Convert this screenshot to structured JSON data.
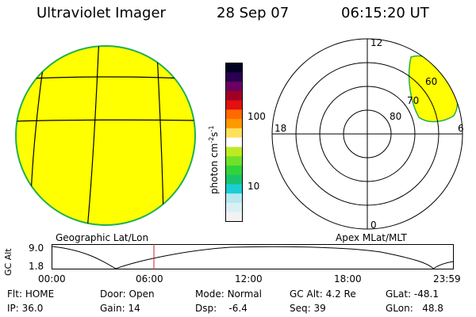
{
  "header": {
    "instrument": "Ultraviolet Imager",
    "date": "28 Sep 07",
    "time": "06:15:20 UT"
  },
  "colorbar": {
    "unit_label": "photon cm",
    "unit_exp1": "-2",
    "unit_mid": "s",
    "unit_exp2": "-1",
    "tick_100": "100",
    "tick_10": "10",
    "colors": [
      "#f2f2f2",
      "#d8f0f4",
      "#b6e8ee",
      "#1ccdd6",
      "#19c36d",
      "#2fd43a",
      "#6fe12b",
      "#bdea23",
      "#ffffff",
      "#ffe05a",
      "#ff9900",
      "#ff6a00",
      "#e21010",
      "#a10024",
      "#6b0063",
      "#2a0052",
      "#000020"
    ]
  },
  "geo_panel": {
    "label": "Geographic Lat/Lon",
    "fill_color": "#ffff00",
    "rim_color": "#20b050"
  },
  "polar_panel": {
    "label": "Apex MLat/MLT",
    "mlt_12": "12",
    "mlt_18": "18",
    "mlt_6": "6",
    "mlt_0": "0",
    "lat_60": "60",
    "lat_70": "70",
    "lat_80": "80"
  },
  "altitude_plot": {
    "ylabel": "GC Alt",
    "yticks": [
      "9.0",
      "1.8"
    ],
    "xticks": [
      "00:00",
      "06:00",
      "12:00",
      "18:00",
      "23:59"
    ],
    "current_time_marker_color": "#d02020"
  },
  "status": {
    "flt_label": "Flt:",
    "flt_value": "HOME",
    "ip_label": "IP:",
    "ip_value": "36.0",
    "door_label": "Door:",
    "door_value": "Open",
    "gain_label": "Gain:",
    "gain_value": "14",
    "mode_label": "Mode:",
    "mode_value": "Normal",
    "dsp_label": "Dsp:",
    "dsp_value": "-6.4",
    "gcalt_label": "GC Alt:",
    "gcalt_value": "4.2 Re",
    "seq_label": "Seq:",
    "seq_value": "39",
    "glat_label": "GLat:",
    "glat_value": "-48.1",
    "glon_label": "GLon:",
    "glon_value": "48.8"
  }
}
